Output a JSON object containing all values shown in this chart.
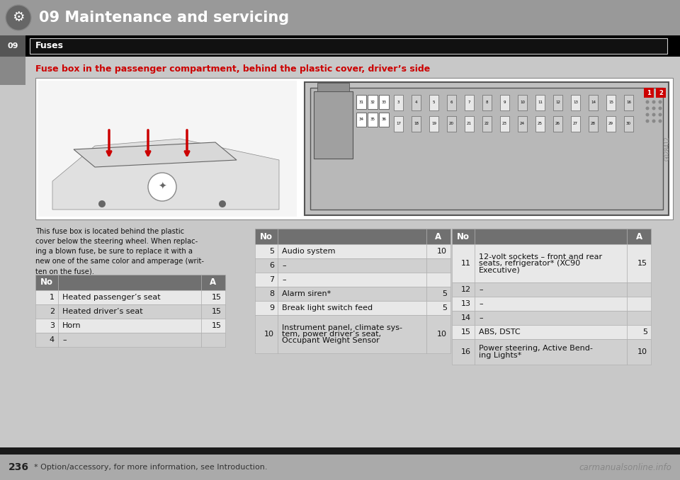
{
  "page_bg": "#c8c8c8",
  "header_bg": "#999999",
  "header_text": "09 Maintenance and servicing",
  "header_text_color": "#ffffff",
  "section_title": "Fuses",
  "section_side_label": "09",
  "subtitle": "Fuse box in the passenger compartment, behind the plastic cover, driver’s side",
  "subtitle_color": "#cc0000",
  "description_text": "This fuse box is located behind the plastic\ncover below the steering wheel. When replac-\ning a blown fuse, be sure to replace it with a\nnew one of the same color and amperage (writ-\nten on the fuse).",
  "table1_rows": [
    [
      "1",
      "Heated passenger’s seat",
      "15"
    ],
    [
      "2",
      "Heated driver’s seat",
      "15"
    ],
    [
      "3",
      "Horn",
      "15"
    ],
    [
      "4",
      "–",
      ""
    ]
  ],
  "table2_rows": [
    [
      "5",
      "Audio system",
      "10"
    ],
    [
      "6",
      "–",
      ""
    ],
    [
      "7",
      "–",
      ""
    ],
    [
      "8",
      "Alarm siren*",
      "5"
    ],
    [
      "9",
      "Break light switch feed",
      "5"
    ],
    [
      "10",
      "Instrument panel, climate sys-\ntem, power driver’s seat,\nOccupant Weight Sensor",
      "10"
    ]
  ],
  "table3_rows": [
    [
      "11",
      "12-volt sockets – front and rear\nseats, refrigerator* (XC90\nExecutive)",
      "15"
    ],
    [
      "12",
      "–",
      ""
    ],
    [
      "13",
      "–",
      ""
    ],
    [
      "14",
      "–",
      ""
    ],
    [
      "15",
      "ABS, DSTC",
      "5"
    ],
    [
      "16",
      "Power steering, Active Bend-\ning Lights*",
      "10"
    ]
  ],
  "footer_page": "236",
  "footer_note": "* Option/accessory, for more information, see Introduction.",
  "footer_watermark": "carmanualsonline.info",
  "image_code": "G028412",
  "table_header_bg": "#707070",
  "table_row_light_bg": "#e8e8e8",
  "table_row_dark_bg": "#d0d0d0",
  "table_border_color": "#aaaaaa"
}
